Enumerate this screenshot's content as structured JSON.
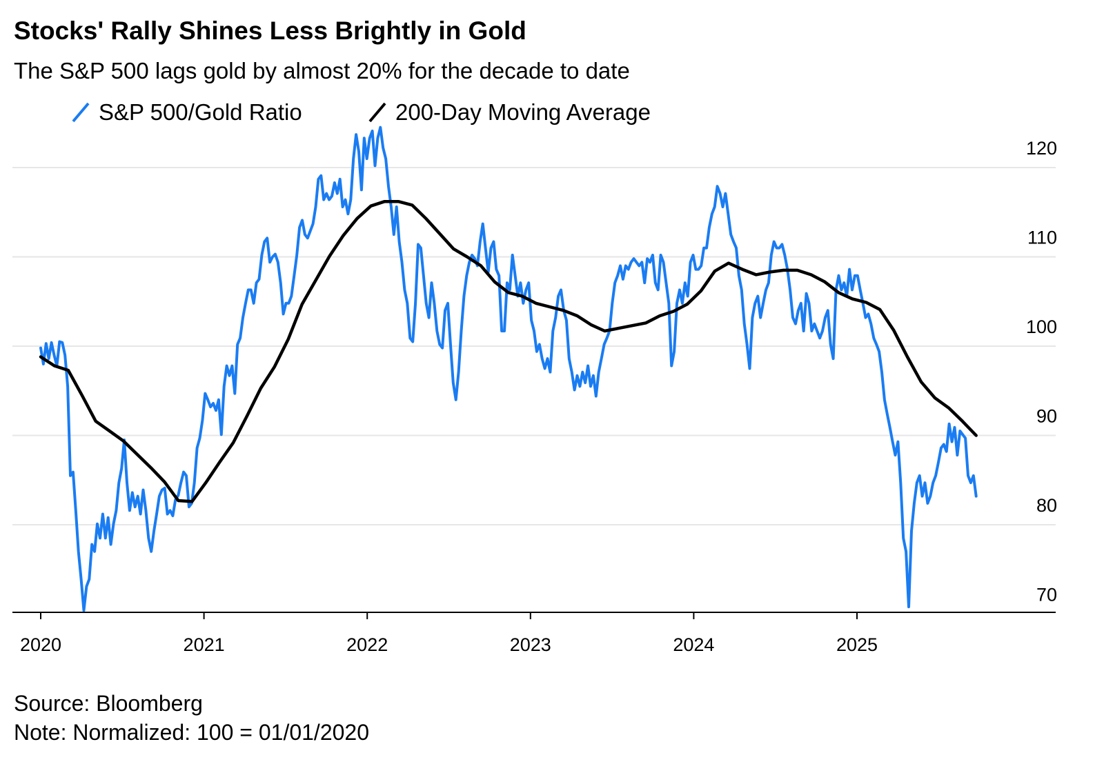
{
  "chart_data": {
    "type": "line",
    "title": "Stocks' Rally Shines Less Brightly in Gold",
    "subtitle": "The S&P 500 lags gold by almost 20% for the decade to date",
    "xlabel": "",
    "ylabel": "",
    "xlim": [
      2020.0,
      2025.73
    ],
    "ylim": [
      70,
      125
    ],
    "yticks": [
      70,
      80,
      90,
      100,
      110,
      120
    ],
    "ytick_labels": [
      "70",
      "80",
      "90",
      "100",
      "110",
      "120"
    ],
    "xticks": [
      2020,
      2021,
      2022,
      2023,
      2024,
      2025
    ],
    "xtick_labels": [
      "2020",
      "2021",
      "2022",
      "2023",
      "2024",
      "2025"
    ],
    "grid": true,
    "y_axis_side": "right",
    "legend_placement": "top-left",
    "series": [
      {
        "name": "S&P 500/Gold Ratio",
        "color": "#1a7cf2",
        "x_start": 2020.0,
        "x_end": 2025.73,
        "values": [
          99.8,
          98.0,
          100.3,
          98.6,
          100.4,
          99.0,
          97.8,
          100.5,
          100.4,
          99.0,
          95.5,
          85.5,
          85.9,
          81.6,
          77.0,
          73.9,
          70.4,
          73.1,
          73.9,
          77.8,
          77.0,
          80.1,
          78.5,
          81.2,
          78.5,
          80.8,
          77.8,
          80.1,
          81.6,
          84.7,
          86.3,
          89.5,
          84.7,
          81.6,
          83.6,
          82.0,
          83.2,
          81.2,
          83.9,
          81.6,
          78.5,
          77.0,
          79.3,
          81.2,
          83.2,
          83.9,
          84.1,
          81.2,
          81.6,
          81.0,
          82.8,
          83.3,
          84.7,
          85.9,
          85.5,
          82.0,
          82.4,
          84.7,
          88.6,
          89.7,
          91.7,
          94.7,
          94.0,
          93.2,
          93.6,
          92.8,
          94.0,
          90.1,
          95.5,
          97.8,
          96.7,
          97.8,
          94.7,
          100.2,
          100.9,
          103.2,
          104.8,
          106.3,
          106.3,
          104.8,
          107.1,
          107.5,
          110.2,
          111.7,
          112.1,
          109.4,
          110.0,
          110.3,
          109.4,
          107.1,
          103.6,
          104.8,
          104.8,
          105.6,
          107.9,
          110.2,
          113.3,
          114.1,
          112.5,
          112.1,
          112.9,
          113.7,
          115.6,
          118.7,
          119.1,
          116.4,
          117.1,
          116.4,
          116.8,
          118.3,
          117.1,
          118.7,
          115.6,
          116.4,
          114.8,
          116.4,
          121.0,
          123.7,
          121.8,
          117.5,
          123.3,
          121.0,
          123.3,
          124.1,
          120.2,
          123.3,
          124.5,
          122.2,
          121.0,
          117.9,
          115.6,
          112.5,
          115.6,
          111.7,
          109.4,
          106.3,
          104.8,
          100.9,
          100.5,
          104.8,
          111.4,
          111.0,
          107.9,
          104.8,
          103.2,
          107.1,
          104.8,
          101.7,
          100.2,
          99.8,
          104.0,
          104.8,
          100.2,
          95.9,
          94.0,
          97.1,
          101.7,
          105.6,
          107.9,
          109.4,
          110.2,
          109.8,
          109.0,
          111.7,
          113.7,
          111.0,
          108.3,
          111.0,
          111.7,
          108.6,
          107.9,
          101.7,
          101.7,
          107.1,
          106.3,
          110.2,
          107.9,
          105.6,
          107.1,
          104.8,
          106.3,
          107.1,
          102.9,
          101.7,
          99.4,
          100.2,
          98.6,
          97.5,
          98.6,
          97.1,
          101.7,
          103.2,
          105.6,
          106.3,
          104.0,
          102.9,
          98.6,
          97.1,
          95.1,
          96.7,
          95.5,
          97.1,
          95.9,
          97.8,
          95.5,
          96.7,
          94.4,
          97.1,
          98.6,
          100.2,
          100.9,
          101.7,
          104.8,
          107.1,
          107.9,
          109.0,
          107.5,
          109.0,
          108.6,
          109.4,
          109.8,
          109.4,
          109.0,
          109.4,
          107.1,
          109.8,
          109.4,
          110.2,
          107.1,
          106.3,
          110.2,
          109.4,
          107.1,
          104.8,
          97.8,
          99.4,
          104.8,
          106.3,
          104.8,
          107.1,
          105.6,
          109.4,
          110.2,
          108.6,
          108.6,
          109.0,
          111.0,
          111.0,
          113.3,
          114.8,
          115.6,
          117.9,
          117.1,
          115.6,
          117.1,
          114.8,
          112.5,
          111.7,
          111.0,
          107.9,
          106.3,
          102.5,
          100.2,
          97.5,
          103.2,
          104.8,
          105.6,
          103.2,
          104.8,
          106.3,
          107.1,
          110.2,
          111.7,
          111.0,
          111.0,
          111.4,
          110.2,
          108.6,
          106.3,
          103.2,
          102.5,
          104.0,
          104.8,
          101.7,
          105.9,
          104.8,
          101.7,
          102.5,
          101.7,
          100.9,
          101.7,
          103.2,
          104.0,
          100.2,
          98.6,
          106.3,
          107.9,
          106.3,
          107.1,
          105.6,
          108.6,
          106.3,
          107.9,
          107.9,
          106.3,
          104.8,
          103.2,
          103.6,
          102.5,
          100.9,
          100.2,
          99.4,
          97.1,
          94.0,
          92.4,
          90.9,
          89.3,
          87.8,
          89.3,
          84.7,
          78.5,
          77.0,
          70.8,
          79.3,
          82.4,
          84.7,
          85.5,
          83.2,
          84.7,
          82.4,
          83.2,
          84.7,
          85.5,
          87.0,
          88.6,
          89.0,
          88.2,
          91.3,
          89.3,
          90.9,
          87.8,
          90.5,
          90.1,
          89.7,
          85.5,
          84.7,
          85.5,
          83.2
        ]
      },
      {
        "name": "200-Day Moving Average",
        "color": "#000000",
        "x_start": 2020.0,
        "x_end": 2025.73,
        "values": [
          98.8,
          97.8,
          97.3,
          94.5,
          91.6,
          90.5,
          89.4,
          87.9,
          86.4,
          84.8,
          82.7,
          82.6,
          84.7,
          87.0,
          89.2,
          92.2,
          95.3,
          97.7,
          100.8,
          104.7,
          107.4,
          110.1,
          112.4,
          114.3,
          115.7,
          116.2,
          116.2,
          115.8,
          114.3,
          112.6,
          110.9,
          110.0,
          109.0,
          107.2,
          106.0,
          105.6,
          104.8,
          104.4,
          104.0,
          103.4,
          102.4,
          101.7,
          102.0,
          102.3,
          102.6,
          103.4,
          103.9,
          104.7,
          106.2,
          108.4,
          109.3,
          108.6,
          108.0,
          108.3,
          108.5,
          108.5,
          108.0,
          107.2,
          106.0,
          105.3,
          104.9,
          104.1,
          101.8,
          98.8,
          96.0,
          94.2,
          93.1,
          91.6,
          90.0
        ]
      }
    ]
  },
  "footer": {
    "source": "Source: Bloomberg",
    "note": "Note: Normalized: 100 = 01/01/2020"
  }
}
